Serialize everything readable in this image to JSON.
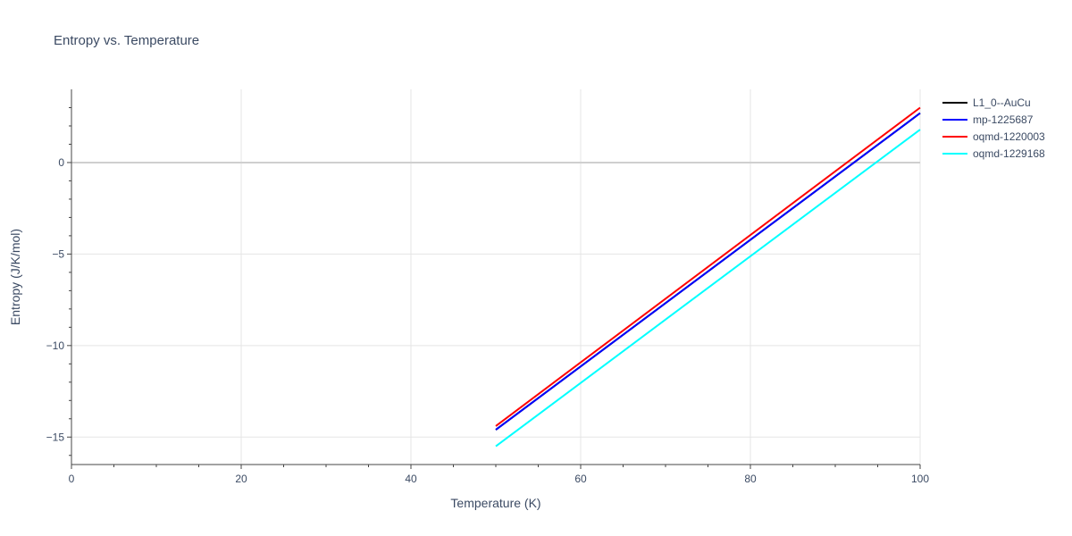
{
  "chart_data": {
    "type": "line",
    "title": "Entropy vs. Temperature",
    "xlabel": "Temperature (K)",
    "ylabel": "Entropy (J/K/mol)",
    "xlim": [
      0,
      100
    ],
    "ylim": [
      -16.5,
      4
    ],
    "xticks": [
      0,
      20,
      40,
      60,
      80,
      100
    ],
    "yticks": [
      0,
      -5,
      -10,
      -15
    ],
    "ytick_labels": [
      "0",
      "−5",
      "−10",
      "−15"
    ],
    "grid": true,
    "legend_position": "top-right",
    "series": [
      {
        "name": "L1_0--AuCu",
        "color": "#000000",
        "x": [
          50,
          100
        ],
        "y": [
          -14.6,
          2.7
        ]
      },
      {
        "name": "mp-1225687",
        "color": "#0000ff",
        "x": [
          50,
          100
        ],
        "y": [
          -14.6,
          2.7
        ]
      },
      {
        "name": "oqmd-1220003",
        "color": "#ff0000",
        "x": [
          50,
          100
        ],
        "y": [
          -14.4,
          3.0
        ]
      },
      {
        "name": "oqmd-1229168",
        "color": "#00ffff",
        "x": [
          50,
          100
        ],
        "y": [
          -15.5,
          1.8
        ]
      }
    ]
  }
}
